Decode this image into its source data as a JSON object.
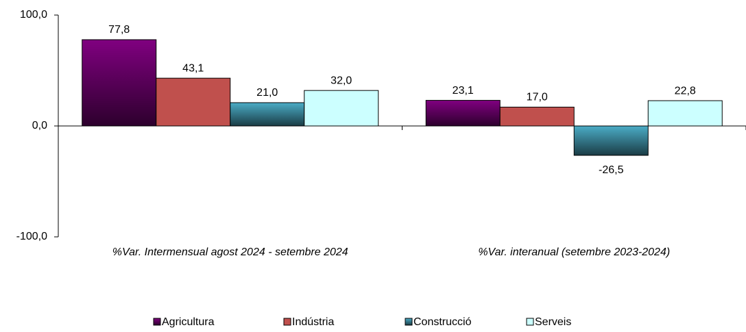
{
  "chart_data": {
    "type": "bar",
    "categories": [
      "%Var. Intermensual agost 2024 - setembre 2024",
      "%Var. interanual (setembre 2023-2024)"
    ],
    "series": [
      {
        "name": "Agricultura",
        "color": "#800080",
        "gradient": true,
        "values": [
          77.8,
          23.1
        ],
        "value_labels": [
          "77,8",
          "23,1"
        ]
      },
      {
        "name": "Indústria",
        "color": "#c0504d",
        "gradient": false,
        "values": [
          43.1,
          17.0
        ],
        "value_labels": [
          "43,1",
          "17,0"
        ]
      },
      {
        "name": "Construcció",
        "color": "#4bacc6",
        "gradient": true,
        "values": [
          21.0,
          -26.5
        ],
        "value_labels": [
          "21,0",
          "-26,5"
        ]
      },
      {
        "name": "Serveis",
        "color": "#ccffff",
        "gradient": false,
        "values": [
          32.0,
          22.8
        ],
        "value_labels": [
          "32,0",
          "22,8"
        ]
      }
    ],
    "ylim": [
      -100,
      100
    ],
    "yticks": [
      {
        "value": -100,
        "label": "-100,0"
      },
      {
        "value": 0,
        "label": "0,0"
      },
      {
        "value": 100,
        "label": "100,0"
      }
    ],
    "legend": "bottom"
  }
}
